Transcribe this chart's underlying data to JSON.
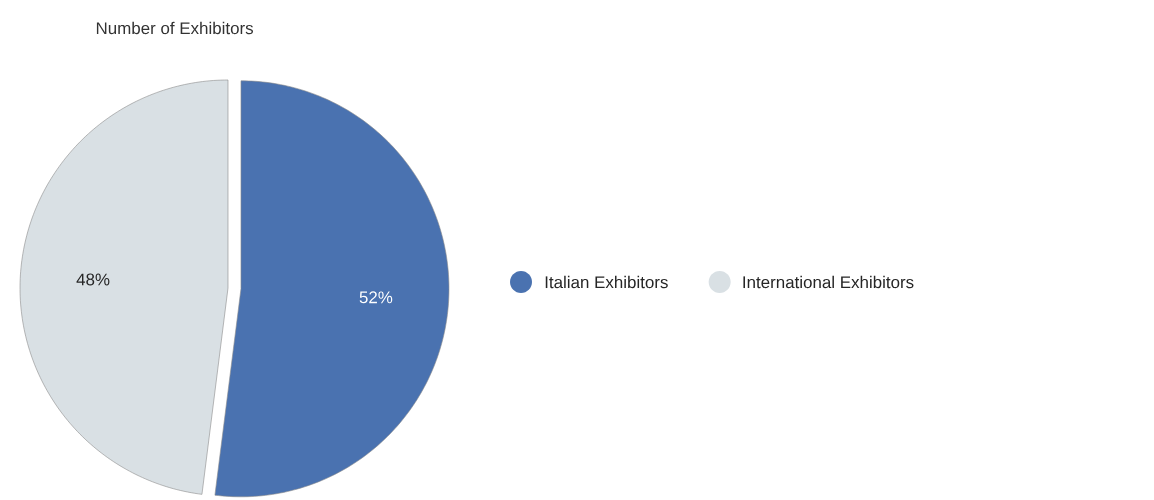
{
  "chart_data": {
    "type": "pie",
    "title": "Number of Exhibitors",
    "categories": [
      "Italian Exhibitors",
      "International Exhibitors"
    ],
    "values": [
      52,
      48
    ],
    "colors": [
      "#4a72b0",
      "#d9e0e4"
    ],
    "value_labels": [
      "52%",
      "48%"
    ],
    "legend": "right"
  }
}
